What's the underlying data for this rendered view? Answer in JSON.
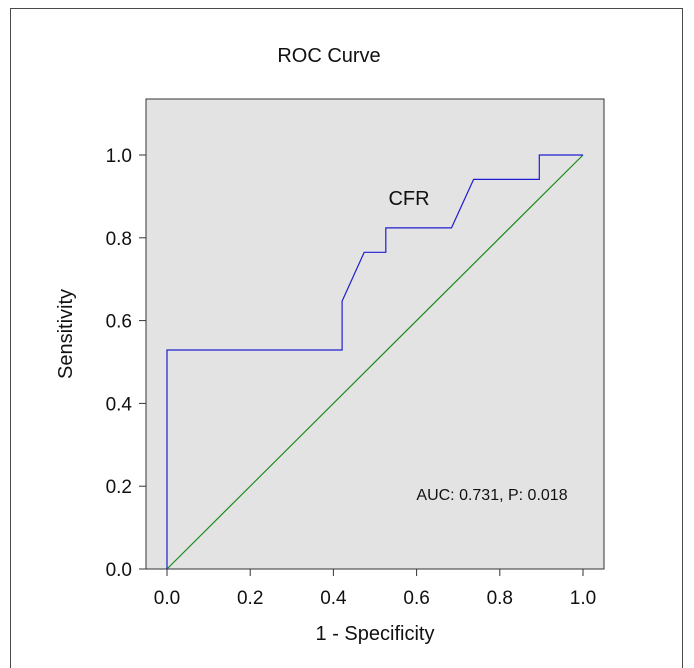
{
  "chart_data": {
    "type": "line",
    "title": "ROC Curve",
    "xlabel": "1 - Specificity",
    "ylabel": "Sensitivity",
    "xlim": [
      0,
      1
    ],
    "ylim": [
      0,
      1.1
    ],
    "x_ticks": [
      "0.0",
      "0.2",
      "0.4",
      "0.6",
      "0.8",
      "1.0"
    ],
    "y_ticks": [
      "0.0",
      "0.2",
      "0.4",
      "0.6",
      "0.8",
      "1.0"
    ],
    "grid": false,
    "plot_background": "#e3e3e3",
    "series": [
      {
        "name": "CFR",
        "color": "#1f1fd1",
        "x": [
          0.0,
          0.0,
          0.421,
          0.421,
          0.474,
          0.526,
          0.526,
          0.684,
          0.737,
          0.895,
          0.895,
          1.0
        ],
        "y": [
          0.0,
          0.529,
          0.529,
          0.647,
          0.765,
          0.765,
          0.824,
          0.824,
          0.941,
          0.941,
          1.0,
          1.0
        ]
      },
      {
        "color": "#1a8a1a",
        "x": [
          0.0,
          1.0
        ],
        "y": [
          0.0,
          1.0
        ]
      }
    ],
    "annotations": [
      {
        "text": "AUC: 0.731, P: 0.018"
      }
    ]
  }
}
